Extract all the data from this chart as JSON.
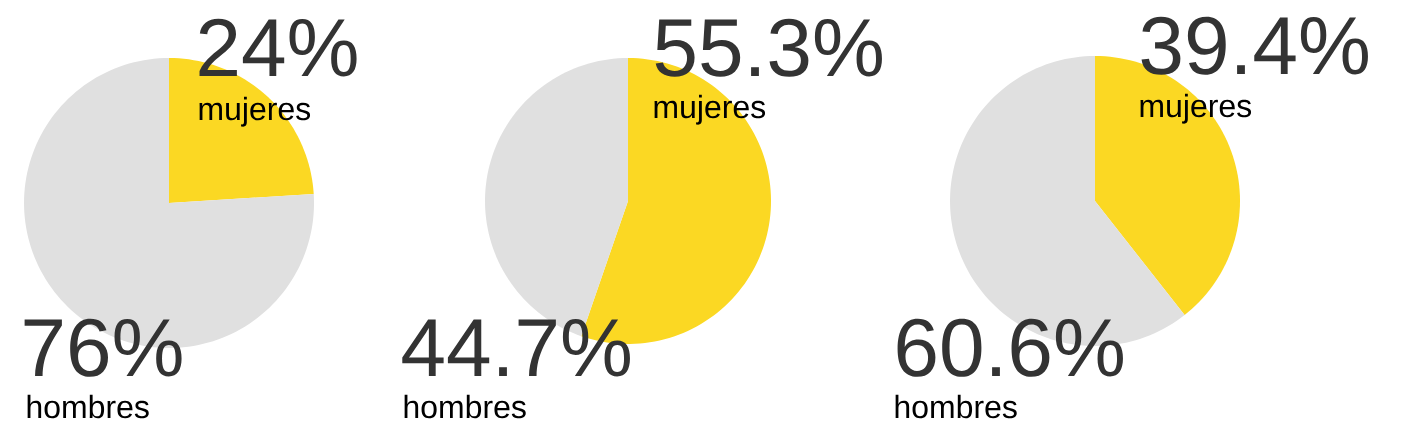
{
  "chart_data": [
    {
      "type": "pie",
      "categories": [
        "mujeres",
        "hombres"
      ],
      "values": [
        24,
        76
      ],
      "value_labels": [
        "24%",
        "76%"
      ],
      "colors": [
        "#fbd823",
        "#e0e0e0"
      ]
    },
    {
      "type": "pie",
      "categories": [
        "mujeres",
        "hombres"
      ],
      "values": [
        55.3,
        44.7
      ],
      "value_labels": [
        "55.3%",
        "44.7%"
      ],
      "colors": [
        "#fbd823",
        "#e0e0e0"
      ]
    },
    {
      "type": "pie",
      "categories": [
        "mujeres",
        "hombres"
      ],
      "values": [
        39.4,
        60.6
      ],
      "value_labels": [
        "39.4%",
        "60.6%"
      ],
      "colors": [
        "#fbd823",
        "#e0e0e0"
      ]
    }
  ]
}
